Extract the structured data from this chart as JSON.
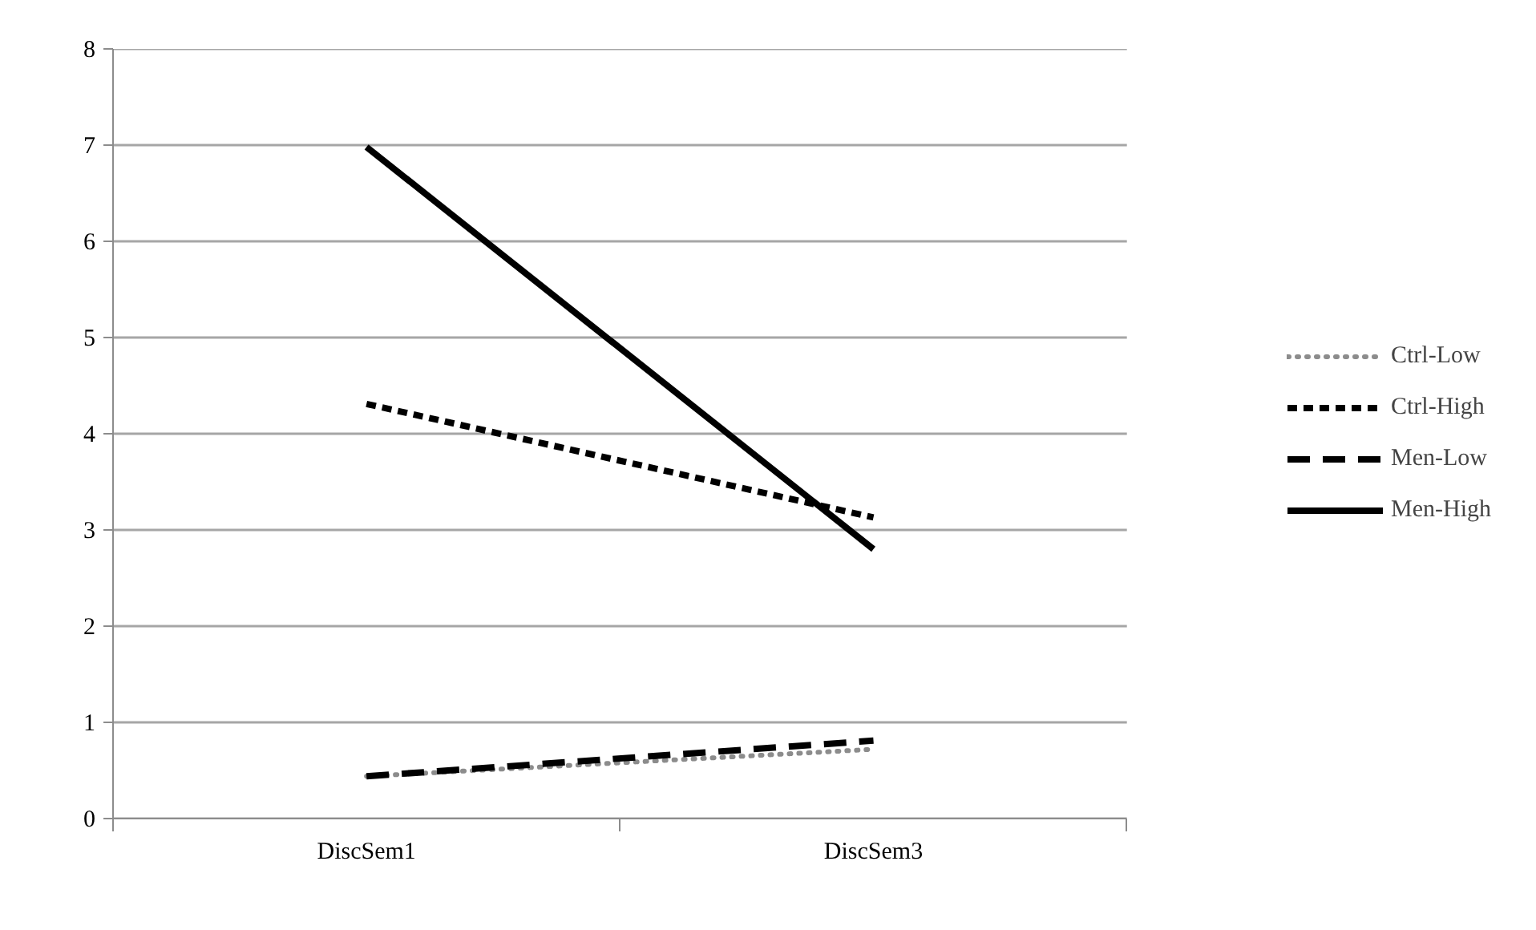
{
  "chart_data": {
    "type": "line",
    "categories": [
      "DiscSem1",
      "DiscSem3"
    ],
    "series": [
      {
        "name": "Ctrl-Low",
        "color": "#8c8c8c",
        "values": [
          0.44,
          0.72
        ],
        "line_style": "dotted"
      },
      {
        "name": "Ctrl-High",
        "color": "#000000",
        "values": [
          4.31,
          3.13
        ],
        "line_style": "dashed"
      },
      {
        "name": "Men-Low",
        "color": "#000000",
        "values": [
          0.44,
          0.81
        ],
        "line_style": "longdash"
      },
      {
        "name": "Men-High",
        "color": "#000000",
        "values": [
          6.98,
          2.8
        ],
        "line_style": "solid"
      }
    ],
    "ylim": [
      0,
      8
    ],
    "yticks": [
      0,
      1,
      2,
      3,
      4,
      5,
      6,
      7,
      8
    ],
    "grid": "y",
    "legend": "right",
    "marker": "none"
  }
}
